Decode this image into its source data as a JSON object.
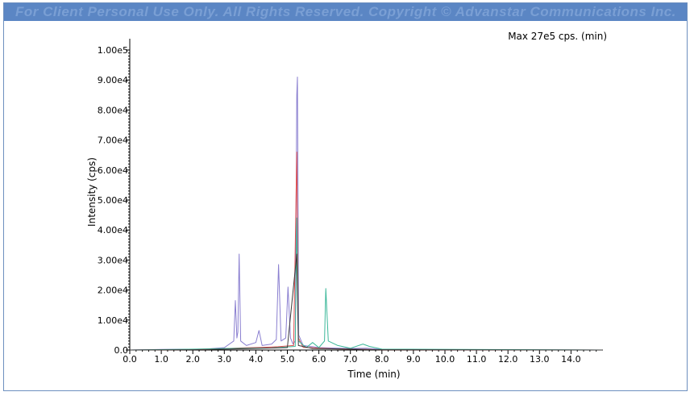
{
  "banner": {
    "text": "For Client Personal Use Only. All Rights Reserved. Copyright © Advanstar Communications Inc."
  },
  "chart_data": {
    "type": "line",
    "title": "",
    "annotation": "Max 27e5 cps. (min)",
    "xlabel": "Time (min)",
    "ylabel": "Intensity (cps)",
    "xlim": [
      0.0,
      15.0
    ],
    "ylim": [
      0,
      100000
    ],
    "x_ticks": [
      "0.0",
      "1.0",
      "2.0",
      "3.0",
      "4.0",
      "5.0",
      "6.0",
      "7.0",
      "8.0",
      "9.0",
      "10.0",
      "11.0",
      "12.0",
      "13.0",
      "14.0"
    ],
    "y_ticks": [
      "0.0",
      "1.00e4",
      "2.00e4",
      "3.00e4",
      "4.00e4",
      "5.00e4",
      "6.00e4",
      "7.00e4",
      "8.00e4",
      "9.00e4",
      "1.00e5"
    ],
    "grid": false,
    "legend": "none",
    "series": [
      {
        "color": "#8a7fd0",
        "points": [
          [
            0.0,
            0
          ],
          [
            1.0,
            200
          ],
          [
            2.4,
            300
          ],
          [
            3.0,
            800
          ],
          [
            3.3,
            3000
          ],
          [
            3.35,
            16500
          ],
          [
            3.4,
            4000
          ],
          [
            3.43,
            6000
          ],
          [
            3.47,
            32000
          ],
          [
            3.52,
            3000
          ],
          [
            3.7,
            1500
          ],
          [
            4.0,
            2500
          ],
          [
            4.1,
            6500
          ],
          [
            4.2,
            1500
          ],
          [
            4.5,
            2000
          ],
          [
            4.65,
            3500
          ],
          [
            4.72,
            28500
          ],
          [
            4.8,
            3000
          ],
          [
            4.95,
            4000
          ],
          [
            5.02,
            21000
          ],
          [
            5.1,
            4000
          ],
          [
            5.18,
            2000
          ],
          [
            5.25,
            3000
          ],
          [
            5.3,
            85000
          ],
          [
            5.32,
            91000
          ],
          [
            5.36,
            5000
          ],
          [
            5.5,
            1500
          ],
          [
            6.0,
            800
          ],
          [
            7.0,
            500
          ],
          [
            7.5,
            600
          ],
          [
            8.0,
            200
          ],
          [
            10.0,
            100
          ],
          [
            15.0,
            0
          ]
        ]
      },
      {
        "color": "#e05050",
        "points": [
          [
            0.0,
            0
          ],
          [
            2.5,
            200
          ],
          [
            3.5,
            700
          ],
          [
            4.2,
            900
          ],
          [
            4.7,
            1100
          ],
          [
            5.2,
            1500
          ],
          [
            5.3,
            66000
          ],
          [
            5.35,
            4000
          ],
          [
            5.5,
            900
          ],
          [
            6.5,
            400
          ],
          [
            8.0,
            100
          ],
          [
            15.0,
            0
          ]
        ]
      },
      {
        "color": "#3cb89a",
        "points": [
          [
            0.0,
            0
          ],
          [
            1.5,
            200
          ],
          [
            3.0,
            500
          ],
          [
            4.5,
            700
          ],
          [
            5.25,
            1200
          ],
          [
            5.3,
            44000
          ],
          [
            5.35,
            3000
          ],
          [
            5.6,
            800
          ],
          [
            5.8,
            2500
          ],
          [
            6.0,
            800
          ],
          [
            6.18,
            3000
          ],
          [
            6.22,
            20500
          ],
          [
            6.3,
            3000
          ],
          [
            6.6,
            1500
          ],
          [
            7.0,
            600
          ],
          [
            7.4,
            2000
          ],
          [
            7.6,
            1200
          ],
          [
            8.0,
            300
          ],
          [
            15.0,
            0
          ]
        ]
      },
      {
        "color": "#3a3a3a",
        "points": [
          [
            0.0,
            0
          ],
          [
            2.0,
            100
          ],
          [
            3.5,
            400
          ],
          [
            5.0,
            800
          ],
          [
            5.3,
            32000
          ],
          [
            5.35,
            1500
          ],
          [
            5.8,
            500
          ],
          [
            7.0,
            300
          ],
          [
            8.0,
            100
          ],
          [
            15.0,
            0
          ]
        ]
      }
    ]
  }
}
